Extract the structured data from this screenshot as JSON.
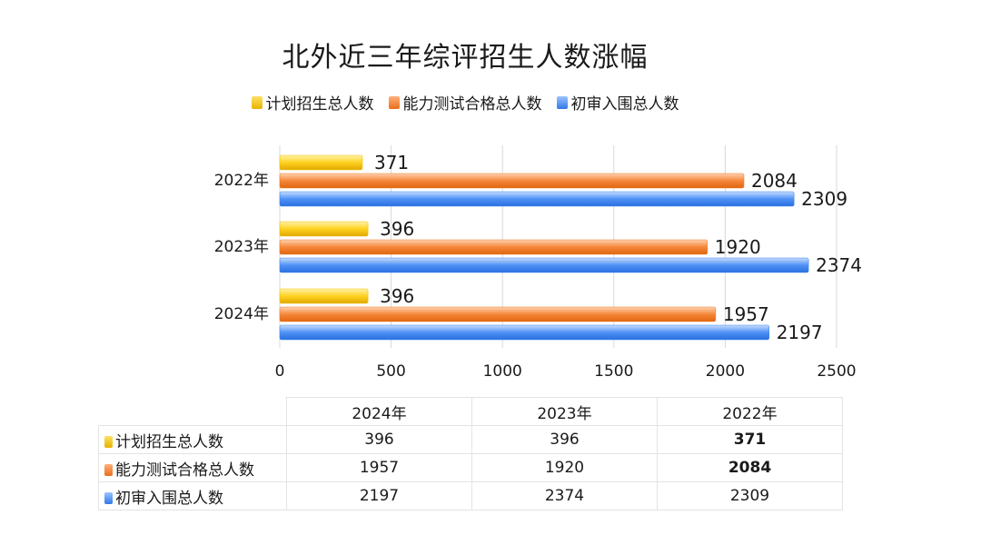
{
  "chart_data": {
    "type": "bar",
    "orientation": "horizontal",
    "title": "北外近三年综评招生人数涨幅",
    "categories": [
      "2022年",
      "2023年",
      "2024年"
    ],
    "series": [
      {
        "name": "计划招生总人数",
        "values": [
          371,
          396,
          396
        ],
        "color": "#f2c200"
      },
      {
        "name": "能力测试合格总人数",
        "values": [
          2084,
          1920,
          1957
        ],
        "color": "#f07d2a"
      },
      {
        "name": "初审入围总人数",
        "values": [
          2309,
          2374,
          2197
        ],
        "color": "#3d86f0"
      }
    ],
    "xlim": [
      0,
      2500
    ],
    "xticks": [
      "0",
      "500",
      "1000",
      "1500",
      "2000",
      "2500"
    ],
    "grid": true,
    "legend_position": "top"
  },
  "table": {
    "columns": [
      "2024年",
      "2023年",
      "2022年"
    ],
    "rows": [
      {
        "label": "计划招生总人数",
        "values": [
          "396",
          "396",
          "371"
        ]
      },
      {
        "label": "能力测试合格总人数",
        "values": [
          "1957",
          "1920",
          "2084"
        ]
      },
      {
        "label": "初审入围总人数",
        "values": [
          "2197",
          "2374",
          "2309"
        ]
      }
    ]
  }
}
